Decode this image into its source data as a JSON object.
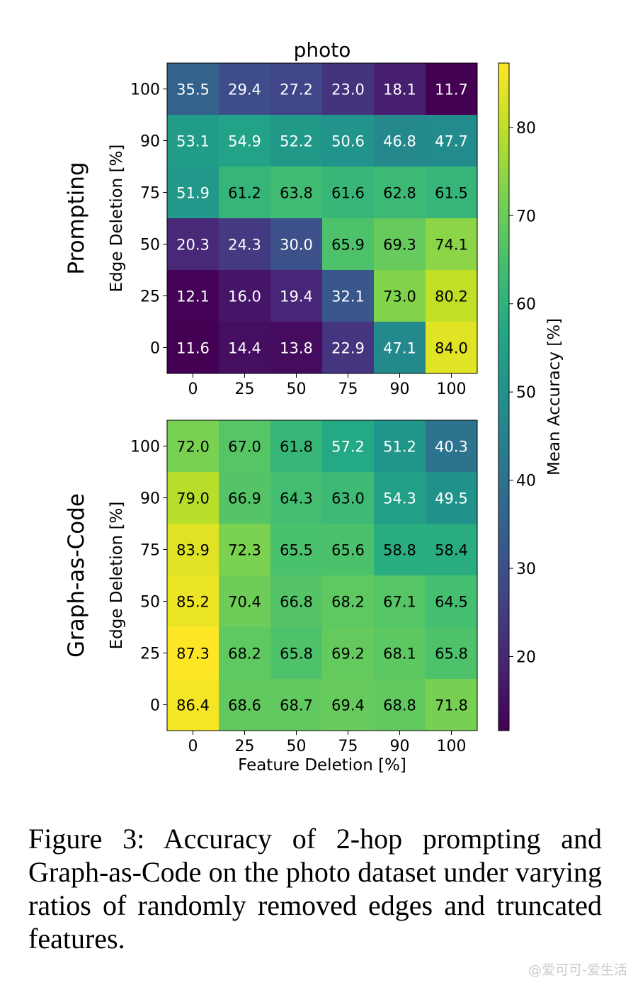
{
  "chart_data": {
    "type": "heatmap",
    "title": "photo",
    "x_ticks": [
      "0",
      "25",
      "50",
      "75",
      "90",
      "100"
    ],
    "y_ticks": [
      "100",
      "90",
      "75",
      "50",
      "25",
      "0"
    ],
    "xlabel": "Feature Deletion [%]",
    "ylabel": "Edge Deletion [%]",
    "colorbar": {
      "label": "Mean Accuracy [%]",
      "ticks": [
        "20",
        "30",
        "40",
        "50",
        "60",
        "70",
        "80"
      ],
      "range": [
        11.6,
        87.3
      ],
      "colormap": "viridis"
    },
    "panels": [
      {
        "name": "Prompting",
        "values": [
          [
            "35.5",
            "29.4",
            "27.2",
            "23.0",
            "18.1",
            "11.7"
          ],
          [
            "53.1",
            "54.9",
            "52.2",
            "50.6",
            "46.8",
            "47.7"
          ],
          [
            "51.9",
            "61.2",
            "63.8",
            "61.6",
            "62.8",
            "61.5"
          ],
          [
            "20.3",
            "24.3",
            "30.0",
            "65.9",
            "69.3",
            "74.1"
          ],
          [
            "12.1",
            "16.0",
            "19.4",
            "32.1",
            "73.0",
            "80.2"
          ],
          [
            "11.6",
            "14.4",
            "13.8",
            "22.9",
            "47.1",
            "84.0"
          ]
        ]
      },
      {
        "name": "Graph-as-Code",
        "values": [
          [
            "72.0",
            "67.0",
            "61.8",
            "57.2",
            "51.2",
            "40.3"
          ],
          [
            "79.0",
            "66.9",
            "64.3",
            "63.0",
            "54.3",
            "49.5"
          ],
          [
            "83.9",
            "72.3",
            "65.5",
            "65.6",
            "58.8",
            "58.4"
          ],
          [
            "85.2",
            "70.4",
            "66.8",
            "68.2",
            "67.1",
            "64.5"
          ],
          [
            "87.3",
            "68.2",
            "65.8",
            "69.2",
            "68.1",
            "65.8"
          ],
          [
            "86.4",
            "68.6",
            "68.7",
            "69.4",
            "68.8",
            "71.8"
          ]
        ]
      }
    ]
  },
  "caption": "Figure 3: Accuracy of 2-hop prompting and Graph-as-Code on the photo dataset under varying ratios of randomly removed edges and truncated features.",
  "watermark": "@爱可可-爱生活"
}
